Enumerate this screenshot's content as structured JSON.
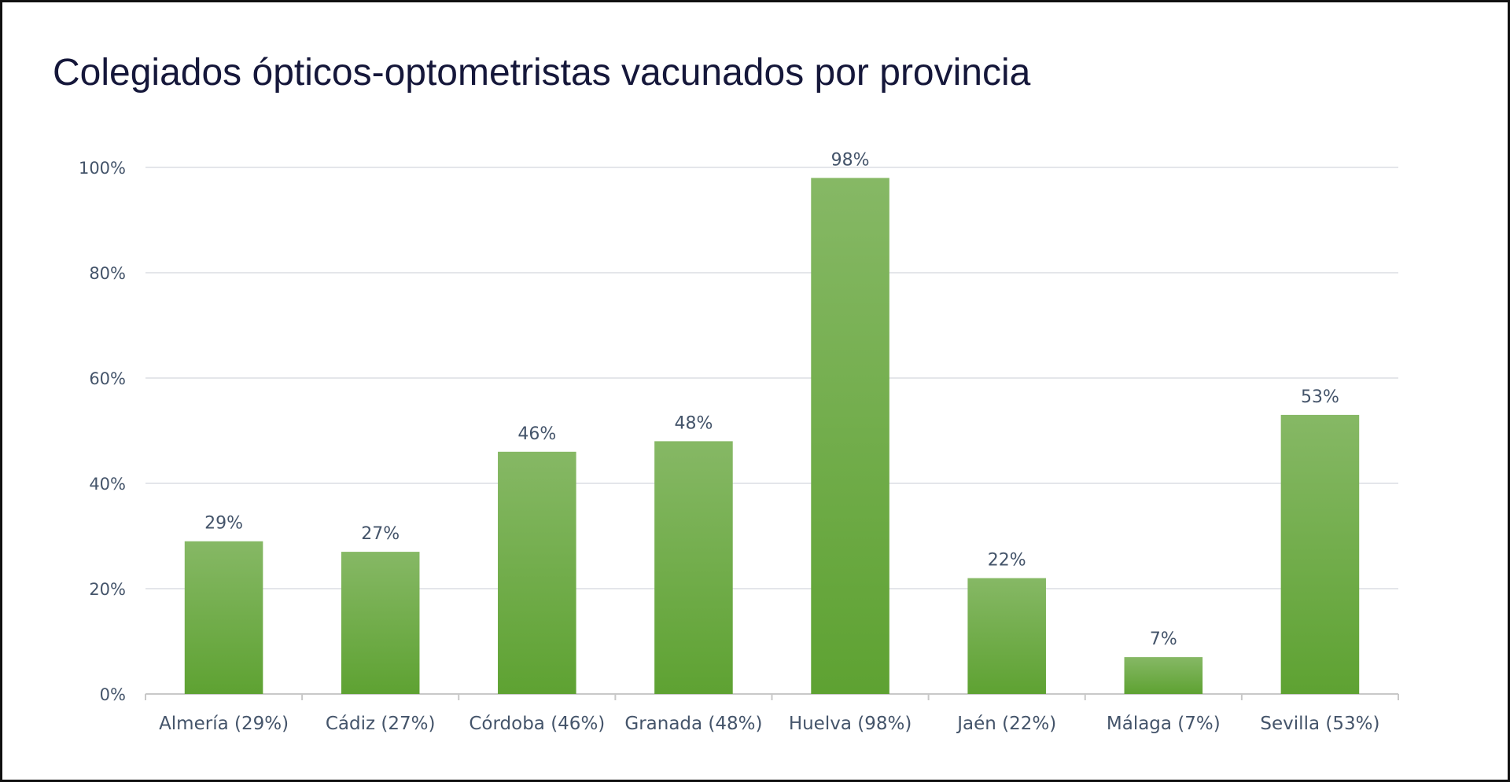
{
  "chart_data": {
    "type": "bar",
    "title": "Colegiados ópticos-optometristas vacunados por provincia",
    "categories": [
      "Almería (29%)",
      "Cádiz (27%)",
      "Córdoba (46%)",
      "Granada (48%)",
      "Huelva (98%)",
      "Jaén (22%)",
      "Málaga (7%)",
      "Sevilla (53%)"
    ],
    "values": [
      29,
      27,
      46,
      48,
      98,
      22,
      7,
      53
    ],
    "data_labels": [
      "29%",
      "27%",
      "46%",
      "48%",
      "98%",
      "22%",
      "7%",
      "53%"
    ],
    "yticks": [
      0,
      20,
      40,
      60,
      80,
      100
    ],
    "ytick_labels": [
      "0%",
      "20%",
      "40%",
      "60%",
      "80%",
      "100%"
    ],
    "ylim": [
      0,
      100
    ],
    "xlabel": "",
    "ylabel": "",
    "grid": true,
    "legend": "none",
    "colors": {
      "bar_top": "#86b865",
      "bar_bottom": "#5ea232",
      "grid": "#dcdde3",
      "axis": "#c8c8c8"
    }
  }
}
